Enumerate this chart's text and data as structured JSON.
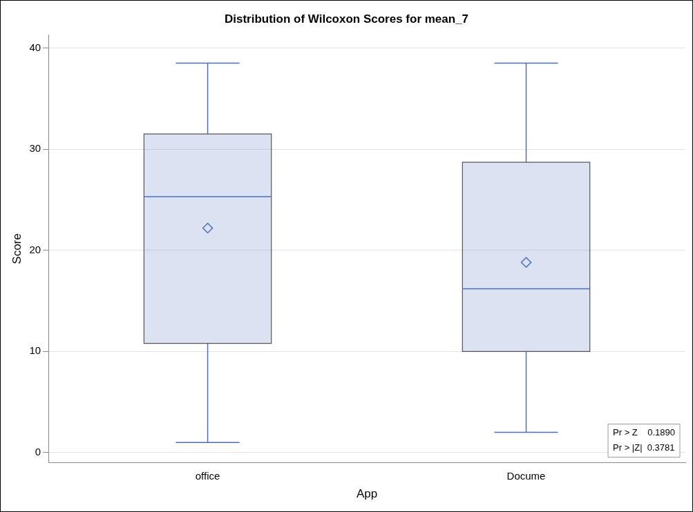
{
  "chart_data": {
    "type": "box",
    "title": "Distribution of Wilcoxon Scores for mean_7",
    "xlabel": "App",
    "ylabel": "Score",
    "categories": [
      "office",
      "Docume"
    ],
    "series": [
      {
        "color": "#4a6ebf",
        "boxes": [
          {
            "low": 1.0,
            "q1": 10.8,
            "median": 25.3,
            "q3": 31.5,
            "high": 38.5,
            "mean": 22.2
          },
          {
            "low": 2.0,
            "q1": 10.0,
            "median": 16.2,
            "q3": 28.7,
            "high": 38.5,
            "mean": 18.8
          }
        ]
      }
    ],
    "ylim": [
      -1,
      41.3
    ],
    "yticks": [
      0,
      10,
      20,
      30,
      40
    ],
    "grid": "y",
    "marker": "diamond",
    "annotations": [
      "Pr > Z    0.1890",
      "Pr > |Z|  0.3781"
    ]
  }
}
